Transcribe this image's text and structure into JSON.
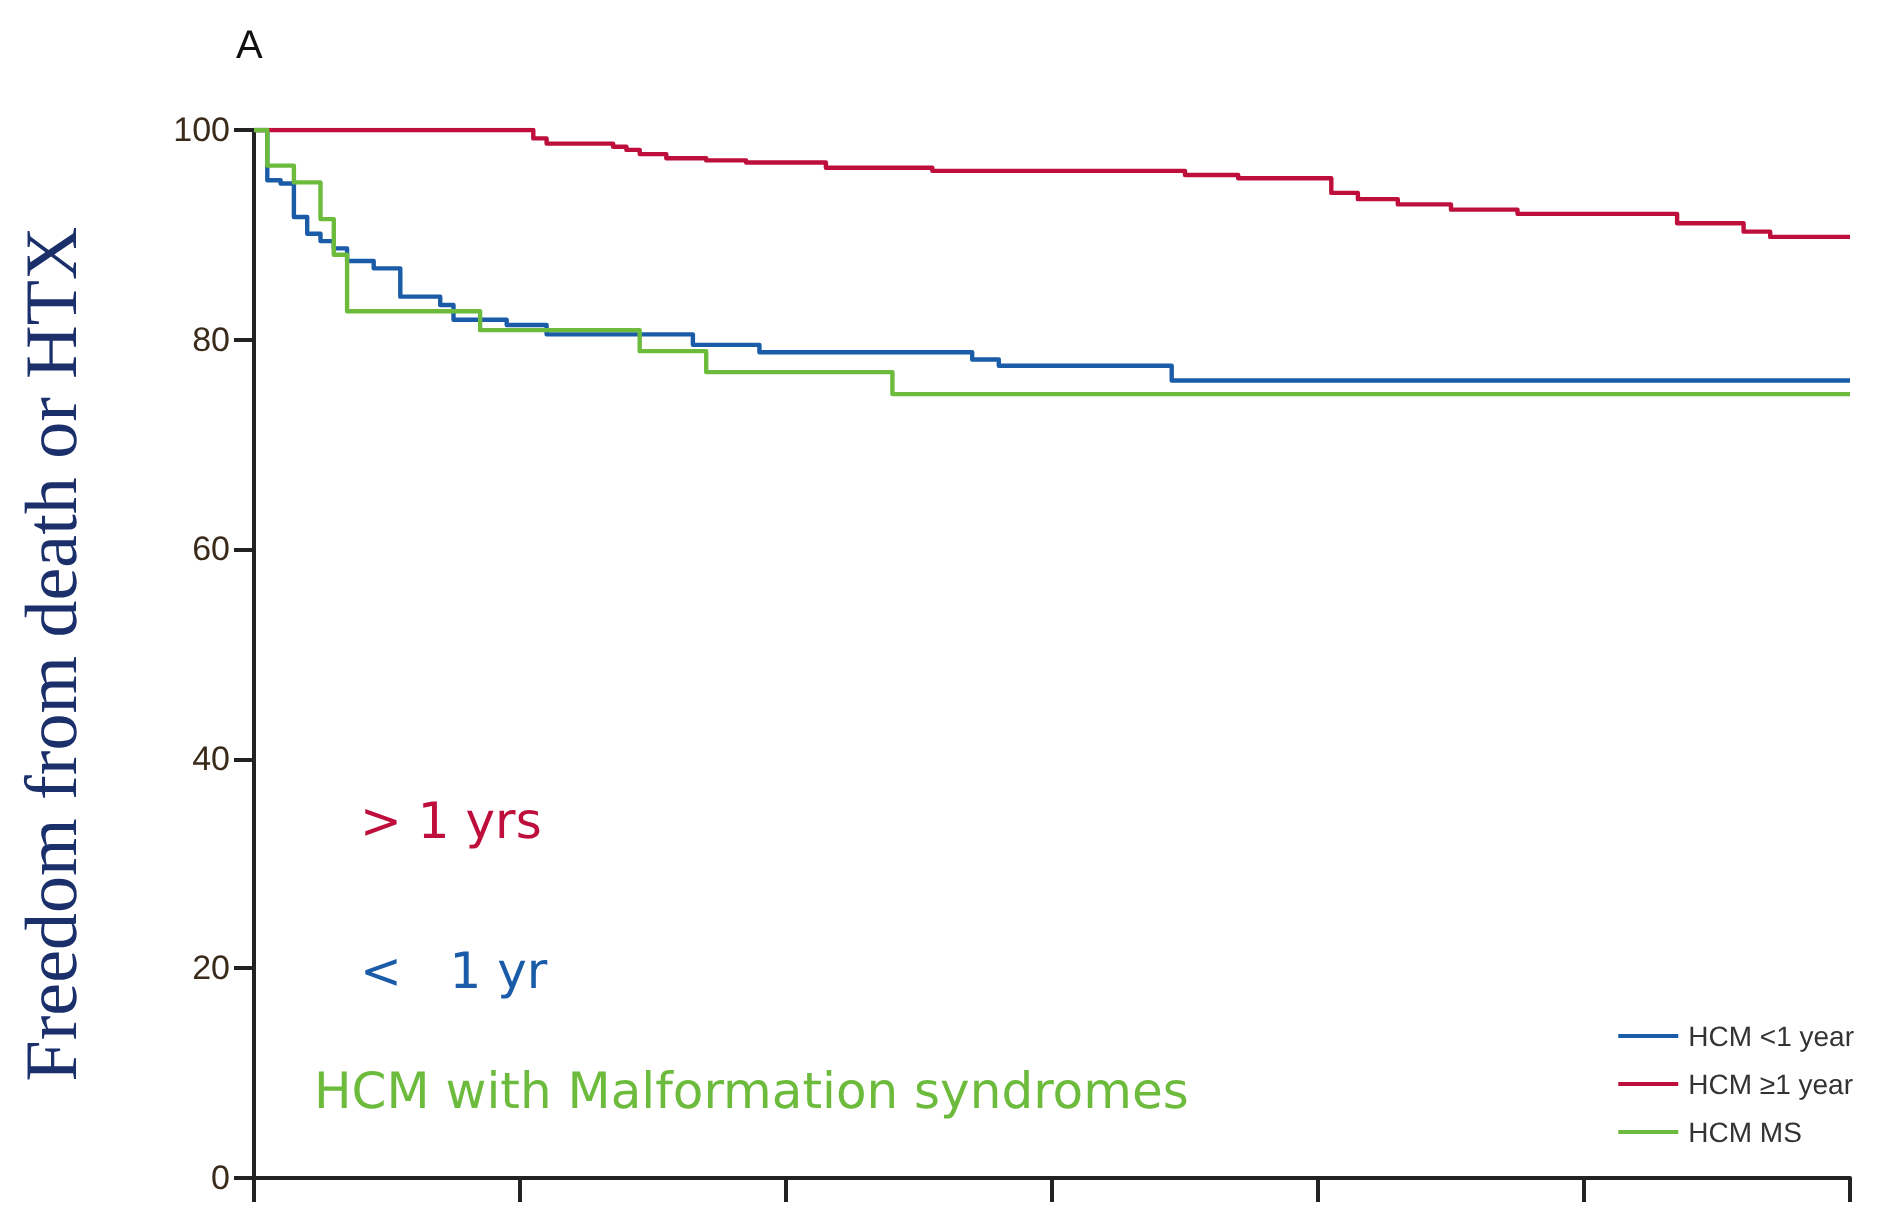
{
  "chart_data": {
    "type": "step",
    "title": "A",
    "ylabel": "Freedom from death or HTX",
    "categories": [
      null,
      null,
      null,
      null,
      null,
      null,
      null,
      null,
      null,
      null,
      null,
      null,
      null,
      null,
      null,
      null,
      null,
      null,
      null,
      null,
      null,
      null,
      null,
      null,
      null,
      null,
      null,
      null,
      null,
      null,
      null,
      null,
      null,
      null,
      null,
      null,
      null,
      null,
      null,
      null,
      null,
      null,
      null,
      null,
      null,
      null,
      null,
      null,
      null,
      null,
      null,
      null,
      null,
      null,
      null,
      null,
      null,
      null,
      null,
      null,
      null,
      null,
      null,
      null,
      null,
      null,
      null,
      null,
      null,
      null,
      null,
      null,
      null,
      null,
      null,
      null,
      null,
      null,
      null,
      null,
      null,
      null,
      null,
      null,
      null,
      null,
      null,
      null,
      null,
      null,
      null,
      null,
      null,
      null,
      null,
      null,
      null,
      null,
      null,
      null,
      null,
      null,
      null,
      null,
      null,
      null,
      null,
      null,
      null,
      null,
      null,
      null,
      null,
      null,
      null,
      null,
      null,
      null,
      null,
      null,
      null
    ],
    "ylim": [
      0,
      100
    ],
    "yticks": [
      0,
      20,
      40,
      60,
      80,
      100
    ],
    "grid": false,
    "legend": "bottom right",
    "marker": "none",
    "line_style": "solid",
    "series": [
      {
        "name": "HCM <1 year",
        "color": "#1a5ca8",
        "values": [
          100,
          95.2,
          94.9,
          91.7,
          90.1,
          89.4,
          88.7,
          87.5,
          87.5,
          86.8,
          86.8,
          84.1,
          84.1,
          84.1,
          83.3,
          81.9,
          81.9,
          81.9,
          81.9,
          81.4,
          81.4,
          81.4,
          80.5,
          80.5,
          80.5,
          80.5,
          80.5,
          80.5,
          80.5,
          80.5,
          80.5,
          80.5,
          80.5,
          79.5,
          79.5,
          79.5,
          79.5,
          79.5,
          78.8,
          78.8,
          78.8,
          78.8,
          78.8,
          78.8,
          78.8,
          78.8,
          78.8,
          78.8,
          78.8,
          78.8,
          78.8,
          78.8,
          78.8,
          78.8,
          78.1,
          78.1,
          77.5,
          77.5,
          77.5,
          77.5,
          77.5,
          77.5,
          77.5,
          77.5,
          77.5,
          77.5,
          77.5,
          77.5,
          77.5,
          76.1,
          76.1,
          76.1,
          76.1,
          76.1,
          76.1,
          76.1,
          76.1,
          76.1,
          76.1,
          76.1,
          76.1,
          76.1,
          76.1,
          76.1,
          76.1,
          76.1,
          76.1,
          76.1,
          76.1,
          76.1,
          76.1,
          76.1,
          76.1,
          76.1,
          76.1,
          76.1,
          76.1,
          76.1,
          76.1,
          76.1,
          76.1,
          76.1,
          76.1,
          76.1,
          76.1,
          76.1,
          76.1,
          76.1,
          76.1,
          76.1,
          76.1,
          76.1,
          76.1,
          76.1,
          76.1,
          76.1,
          76.1,
          76.1,
          76.1,
          76.1,
          76.1
        ]
      },
      {
        "name": "HCM ≥1 year",
        "color": "#be0f3c",
        "values": [
          100,
          100,
          100,
          100,
          100,
          100,
          100,
          100,
          100,
          100,
          100,
          100,
          100,
          100,
          100,
          100,
          100,
          100,
          100,
          100,
          100,
          99.2,
          98.7,
          98.7,
          98.7,
          98.7,
          98.7,
          98.4,
          98.1,
          97.7,
          97.7,
          97.3,
          97.3,
          97.3,
          97.1,
          97.1,
          97.1,
          96.9,
          96.9,
          96.9,
          96.9,
          96.9,
          96.9,
          96.4,
          96.4,
          96.4,
          96.4,
          96.4,
          96.4,
          96.4,
          96.4,
          96.1,
          96.1,
          96.1,
          96.1,
          96.1,
          96.1,
          96.1,
          96.1,
          96.1,
          96.1,
          96.1,
          96.1,
          96.1,
          96.1,
          96.1,
          96.1,
          96.1,
          96.1,
          96.1,
          95.7,
          95.7,
          95.7,
          95.7,
          95.4,
          95.4,
          95.4,
          95.4,
          95.4,
          95.4,
          95.4,
          94.0,
          94.0,
          93.4,
          93.4,
          93.4,
          92.9,
          92.9,
          92.9,
          92.9,
          92.4,
          92.4,
          92.4,
          92.4,
          92.4,
          92.0,
          92.0,
          92.0,
          92.0,
          92.0,
          92.0,
          92.0,
          92.0,
          92.0,
          92.0,
          92.0,
          92.0,
          91.1,
          91.1,
          91.1,
          91.1,
          91.1,
          90.3,
          90.3,
          89.8,
          89.8,
          89.8,
          89.8,
          89.8,
          89.8,
          89.8
        ]
      },
      {
        "name": "HCM MS",
        "color": "#6cbb3c",
        "values": [
          100,
          96.6,
          96.6,
          95.0,
          95.0,
          91.5,
          88.1,
          82.7,
          82.7,
          82.7,
          82.7,
          82.7,
          82.7,
          82.7,
          82.7,
          82.7,
          82.7,
          80.9,
          80.9,
          80.9,
          80.9,
          80.9,
          80.9,
          80.9,
          80.9,
          80.9,
          80.9,
          80.9,
          80.9,
          78.9,
          78.9,
          78.9,
          78.9,
          78.9,
          76.9,
          76.9,
          76.9,
          76.9,
          76.9,
          76.9,
          76.9,
          76.9,
          76.9,
          76.9,
          76.9,
          76.9,
          76.9,
          76.9,
          74.8,
          74.8,
          74.8,
          74.8,
          74.8,
          74.8,
          74.8,
          74.8,
          74.8,
          74.8,
          74.8,
          74.8,
          74.8,
          74.8,
          74.8,
          74.8,
          74.8,
          74.8,
          74.8,
          74.8,
          74.8,
          74.8,
          74.8,
          74.8,
          74.8,
          74.8,
          74.8,
          74.8,
          74.8,
          74.8,
          74.8,
          74.8,
          74.8,
          74.8,
          74.8,
          74.8,
          74.8,
          74.8,
          74.8,
          74.8,
          74.8,
          74.8,
          74.8,
          74.8,
          74.8,
          74.8,
          74.8,
          74.8,
          74.8,
          74.8,
          74.8,
          74.8,
          74.8,
          74.8,
          74.8,
          74.8,
          74.8,
          74.8,
          74.8,
          74.8,
          74.8,
          74.8,
          74.8,
          74.8,
          74.8,
          74.8,
          74.8,
          74.8,
          74.8,
          74.8,
          74.8,
          74.8,
          74.8
        ]
      }
    ],
    "annotations": [
      "> 1 yrs",
      "<   1 yr",
      "HCM with Malformation syndromes"
    ]
  }
}
